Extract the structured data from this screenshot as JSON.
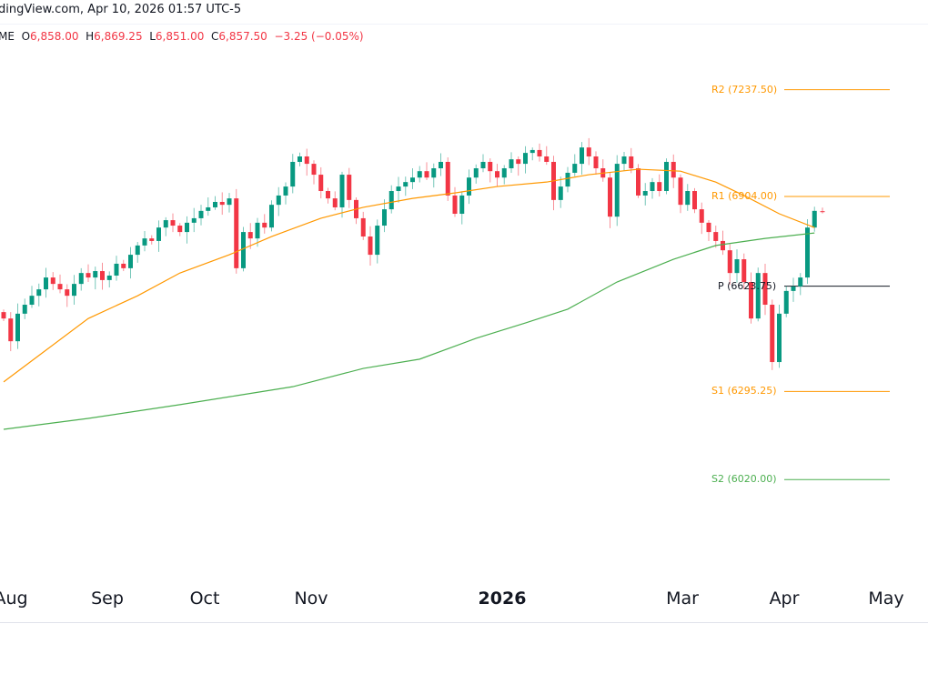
{
  "header": {
    "source_line": "dingView.com, Apr 10, 2026 01:57 UTC-5",
    "symbol_suffix": "ME",
    "o_label": "O",
    "o_value": "6,858.00",
    "h_label": "H",
    "h_value": "6,869.25",
    "l_label": "L",
    "l_value": "6,851.00",
    "c_label": "C",
    "c_value": "6,857.50",
    "change": "−3.25 (−0.05%)"
  },
  "colors": {
    "up": "#089981",
    "down": "#f23645",
    "ma_fast": "#ff9800",
    "ma_slow": "#4caf50",
    "pivot_orange": "#ff9800",
    "pivot_green": "#4caf50",
    "pivot_black": "#131722",
    "change": "#f23645"
  },
  "chart_data": {
    "type": "candlestick",
    "title": "",
    "x_tick_labels": [
      "Aug",
      "Sep",
      "Oct",
      "Nov",
      "2026",
      "Mar",
      "Apr",
      "May"
    ],
    "closes": [
      6523,
      6452,
      6538,
      6566,
      6594,
      6614,
      6651,
      6631,
      6614,
      6594,
      6631,
      6665,
      6651,
      6671,
      6643,
      6657,
      6694,
      6680,
      6722,
      6751,
      6773,
      6765,
      6807,
      6830,
      6813,
      6793,
      6822,
      6836,
      6859,
      6870,
      6887,
      6878,
      6898,
      6680,
      6793,
      6773,
      6822,
      6807,
      6878,
      6907,
      6935,
      7012,
      7029,
      7006,
      6972,
      6921,
      6898,
      6870,
      6972,
      6893,
      6836,
      6779,
      6722,
      6813,
      6864,
      6921,
      6935,
      6949,
      6963,
      6983,
      6963,
      6992,
      7012,
      6907,
      6850,
      6907,
      6963,
      6992,
      7012,
      6983,
      6963,
      6992,
      7020,
      7006,
      7040,
      7049,
      7029,
      7012,
      6893,
      6935,
      6978,
      7006,
      7057,
      7029,
      6992,
      6963,
      6841,
      7006,
      7029,
      6992,
      6907,
      6921,
      6949,
      6921,
      7012,
      6963,
      6878,
      6921,
      6864,
      6822,
      6793,
      6765,
      6736,
      6665,
      6708,
      6637,
      6523,
      6665,
      6566,
      6387,
      6538,
      6609,
      6623,
      6651,
      6807,
      6859
    ],
    "last_candle": {
      "open": 6858.0,
      "high": 6869.25,
      "low": 6851.0,
      "close": 6857.5
    },
    "moving_averages": [
      {
        "name": "MA fast",
        "color": "#ff9800",
        "points": [
          [
            0,
            6325
          ],
          [
            6,
            6424
          ],
          [
            12,
            6523
          ],
          [
            19,
            6594
          ],
          [
            25,
            6665
          ],
          [
            32,
            6722
          ],
          [
            38,
            6779
          ],
          [
            45,
            6836
          ],
          [
            51,
            6870
          ],
          [
            58,
            6898
          ],
          [
            64,
            6915
          ],
          [
            70,
            6935
          ],
          [
            77,
            6949
          ],
          [
            83,
            6972
          ],
          [
            90,
            6989
          ],
          [
            96,
            6983
          ],
          [
            101,
            6949
          ],
          [
            105,
            6907
          ],
          [
            110,
            6850
          ],
          [
            115,
            6807
          ]
        ]
      },
      {
        "name": "MA slow",
        "color": "#4caf50",
        "points": [
          [
            0,
            6177
          ],
          [
            12,
            6211
          ],
          [
            25,
            6254
          ],
          [
            33,
            6282
          ],
          [
            41,
            6310
          ],
          [
            51,
            6367
          ],
          [
            59,
            6396
          ],
          [
            67,
            6461
          ],
          [
            74,
            6509
          ],
          [
            80,
            6552
          ],
          [
            87,
            6637
          ],
          [
            95,
            6708
          ],
          [
            101,
            6751
          ],
          [
            108,
            6773
          ],
          [
            115,
            6790
          ]
        ]
      }
    ],
    "pivots": [
      {
        "label": "R2 (7237.50)",
        "value": 7237.5,
        "color": "#ff9800"
      },
      {
        "label": "R1 (6904.00)",
        "value": 6904.0,
        "color": "#ff9800"
      },
      {
        "label": "P (6623.75)",
        "value": 6623.75,
        "color": "#131722"
      },
      {
        "label": "S1 (6295.25)",
        "value": 6295.25,
        "color": "#ff9800"
      },
      {
        "label": "S2 (6020.00)",
        "value": 6020.0,
        "color": "#4caf50"
      }
    ]
  }
}
